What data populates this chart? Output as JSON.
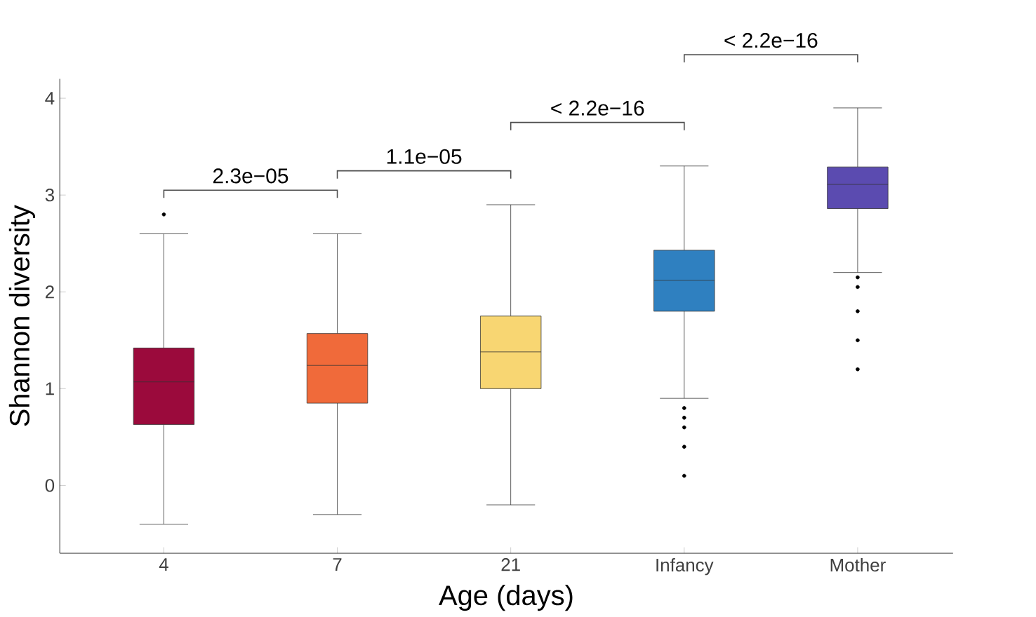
{
  "chart_data": {
    "type": "box",
    "xlabel": "Age (days)",
    "ylabel": "Shannon diversity",
    "categories": [
      "4",
      "7",
      "21",
      "Infancy",
      "Mother"
    ],
    "colors": [
      "#9b0a3c",
      "#f06a3a",
      "#f8d672",
      "#2f80c0",
      "#5b4bb0"
    ],
    "boxes": [
      {
        "low": -0.4,
        "q1": 0.63,
        "median": 1.07,
        "q3": 1.42,
        "high": 2.6,
        "outliers": [
          2.8
        ]
      },
      {
        "low": -0.3,
        "q1": 0.85,
        "median": 1.24,
        "q3": 1.57,
        "high": 2.6
      },
      {
        "low": -0.2,
        "q1": 1.0,
        "median": 1.38,
        "q3": 1.75,
        "high": 2.9
      },
      {
        "low": 0.9,
        "q1": 1.8,
        "median": 2.12,
        "q3": 2.43,
        "high": 3.3,
        "outliers": [
          0.8,
          0.7,
          0.6,
          0.4,
          0.1
        ]
      },
      {
        "low": 2.2,
        "q1": 2.86,
        "median": 3.11,
        "q3": 3.29,
        "high": 3.9,
        "outliers": [
          2.15,
          2.05,
          1.8,
          1.5,
          1.2
        ]
      }
    ],
    "annotations": [
      "2.3e−05",
      "1.1e−05",
      "< 2.2e−16",
      "< 2.2e−16"
    ],
    "ylim": [
      -0.7,
      4.2
    ],
    "yticks": [
      0,
      1,
      2,
      3,
      4
    ],
    "grid": false
  }
}
